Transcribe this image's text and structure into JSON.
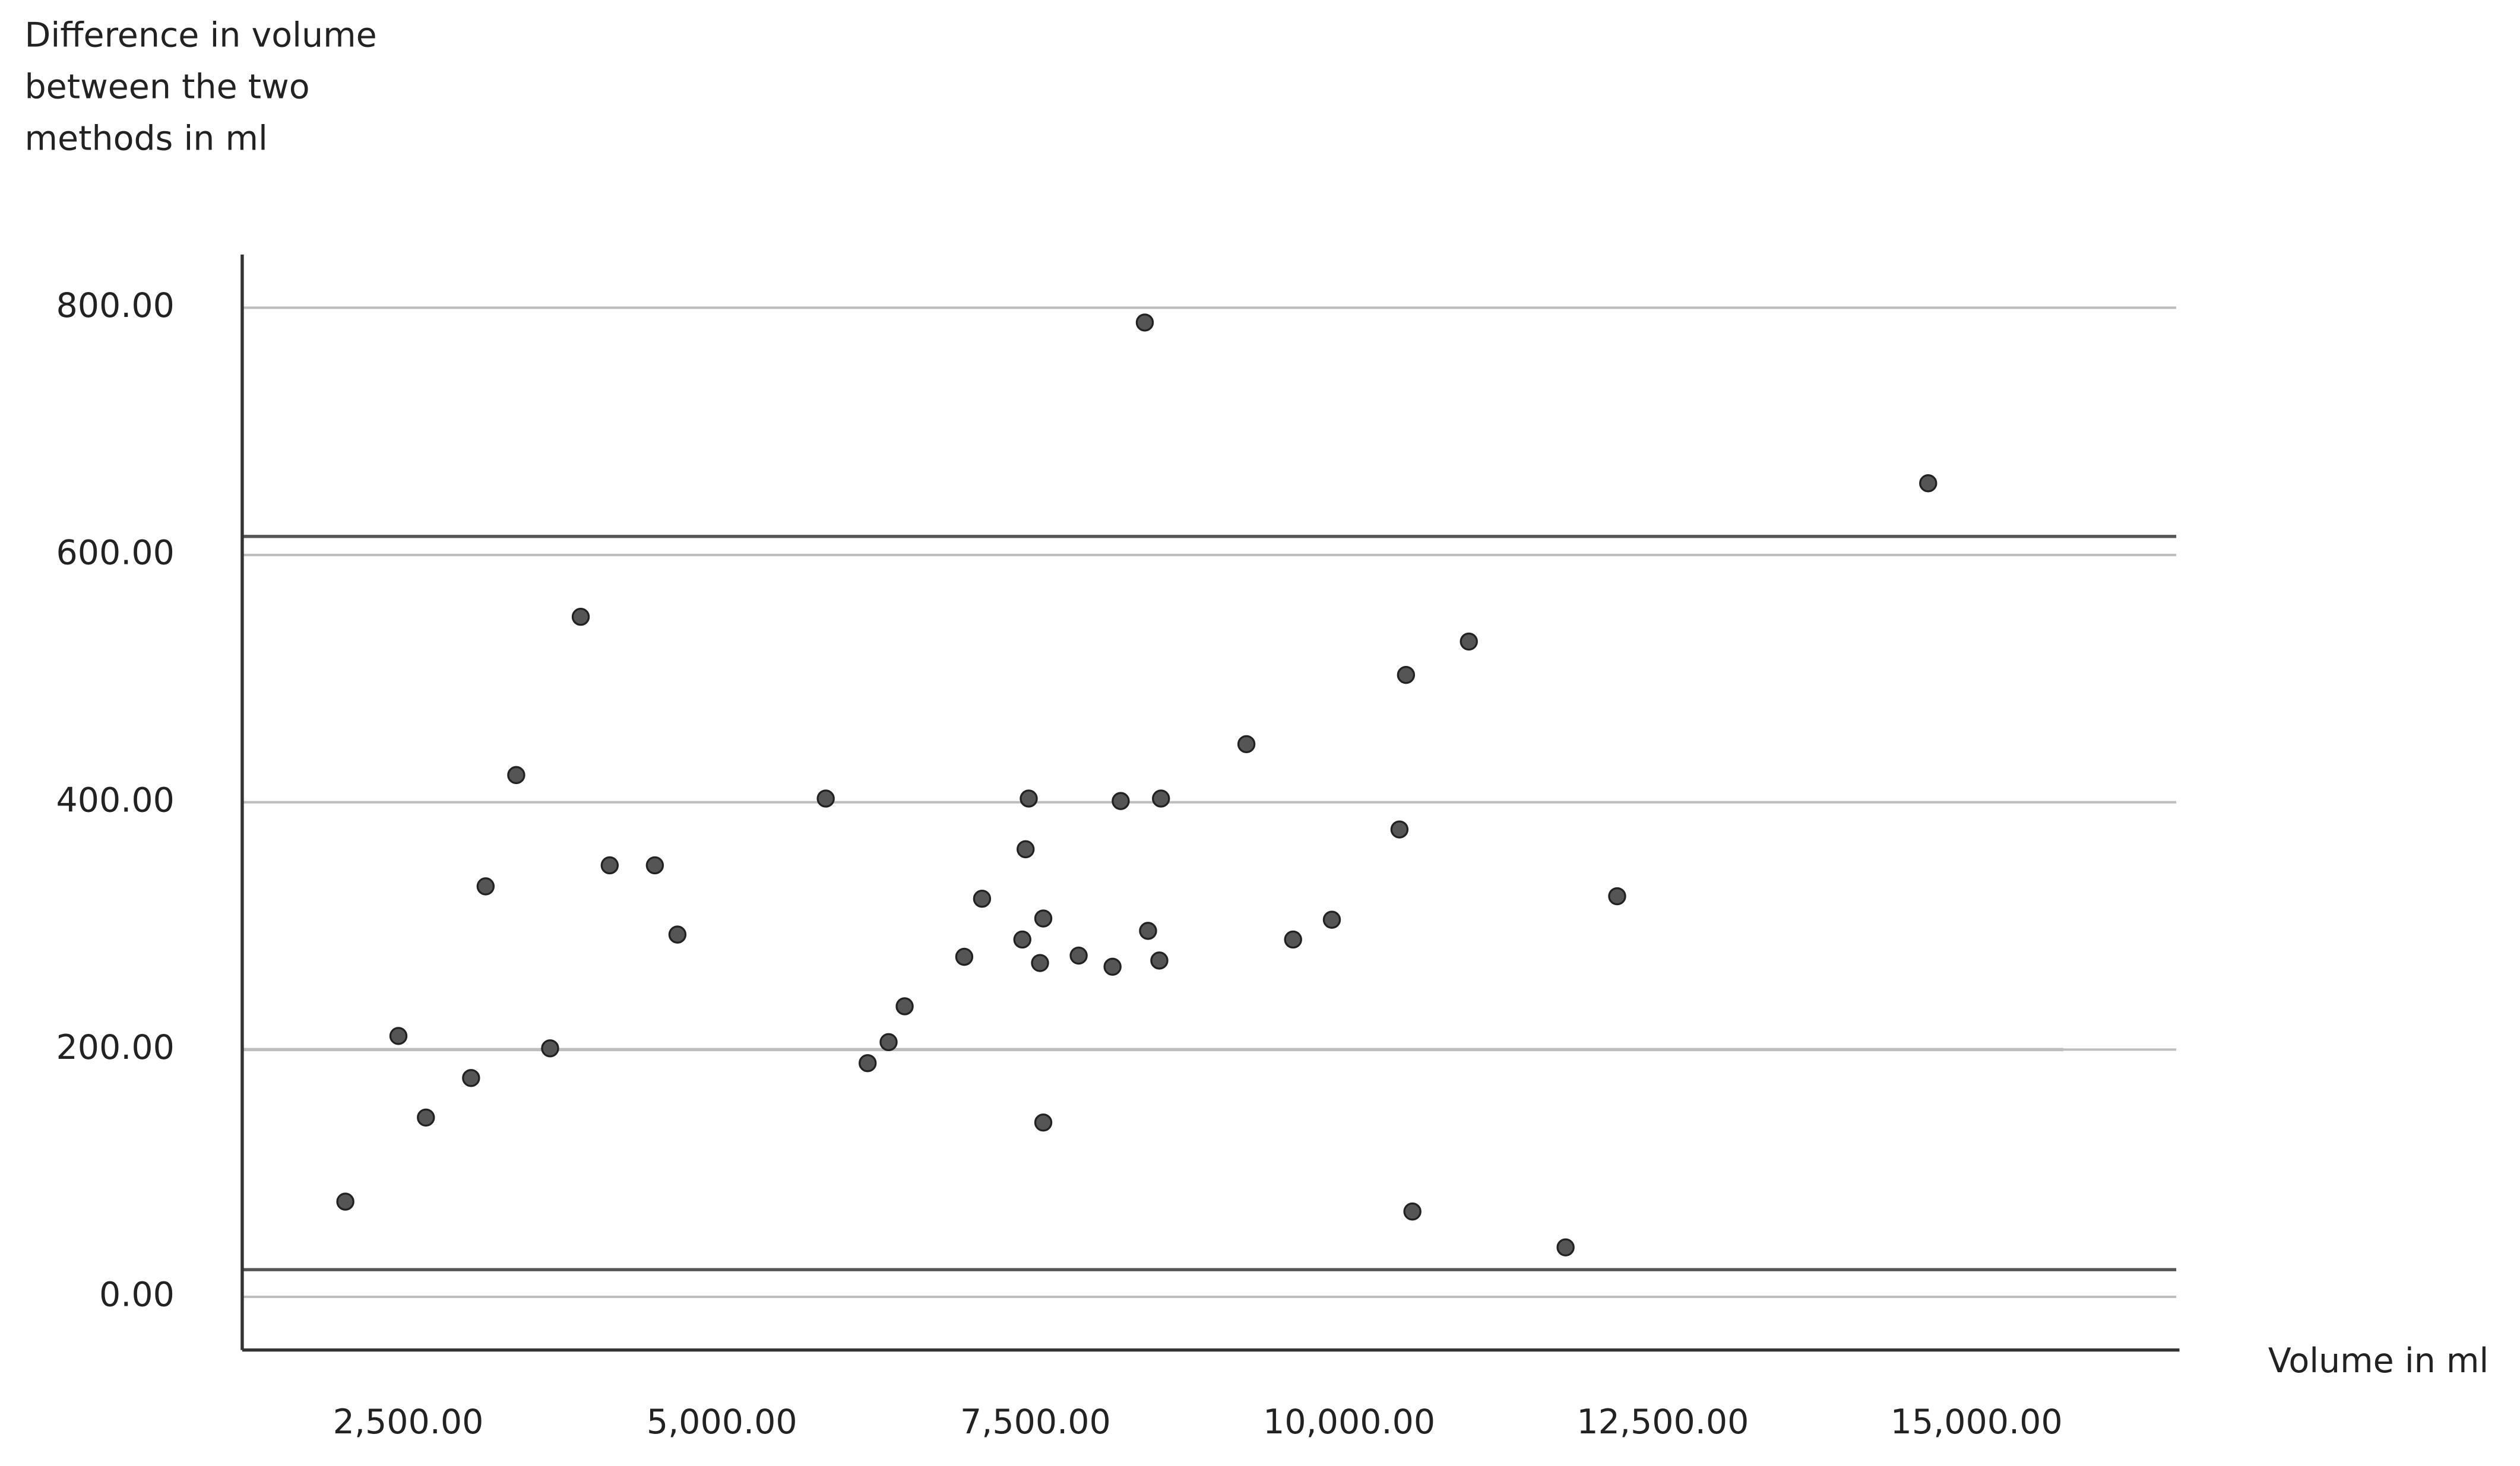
{
  "chart_data": {
    "type": "scatter",
    "y_label": "Difference in volume between the two methods in ml",
    "x_label": "Volume in ml",
    "xlim": [
      1177,
      16618
    ],
    "ylim": [
      -43,
      843
    ],
    "xticks": [
      {
        "value": 2500,
        "label": "2,500.00"
      },
      {
        "value": 5000,
        "label": "5,000.00"
      },
      {
        "value": 7500,
        "label": "7,500.00"
      },
      {
        "value": 10000,
        "label": "10,000.00"
      },
      {
        "value": 12500,
        "label": "12,500.00"
      },
      {
        "value": 15000,
        "label": "15,000.00"
      }
    ],
    "yticks": [
      {
        "value": 0,
        "label": "0.00"
      },
      {
        "value": 200,
        "label": "200.00"
      },
      {
        "value": 400,
        "label": "400.00"
      },
      {
        "value": 600,
        "label": "600.00"
      },
      {
        "value": 800,
        "label": "800.00"
      }
    ],
    "grid": true,
    "reference_lines": [
      615,
      200,
      22
    ],
    "color": "#555555",
    "x": [
      1999,
      2422,
      2641,
      3001,
      3117,
      3361,
      3631,
      3875,
      4106,
      4466,
      4646,
      5828,
      6162,
      6329,
      6457,
      6932,
      7074,
      7395,
      7421,
      7446,
      7536,
      7562,
      7562,
      7844,
      8114,
      8179,
      8371,
      8397,
      8487,
      8500,
      9181,
      9553,
      9862,
      10401,
      10453,
      10504,
      10954,
      11725,
      12136,
      14615
    ],
    "values": [
      77,
      211,
      145,
      177,
      332,
      422,
      201,
      550,
      349,
      349,
      293,
      403,
      189,
      206,
      235,
      275,
      322,
      289,
      362,
      403,
      270,
      306,
      141,
      276,
      267,
      401,
      788,
      296,
      272,
      403,
      447,
      289,
      305,
      378,
      503,
      69,
      530,
      40,
      324,
      658
    ]
  }
}
